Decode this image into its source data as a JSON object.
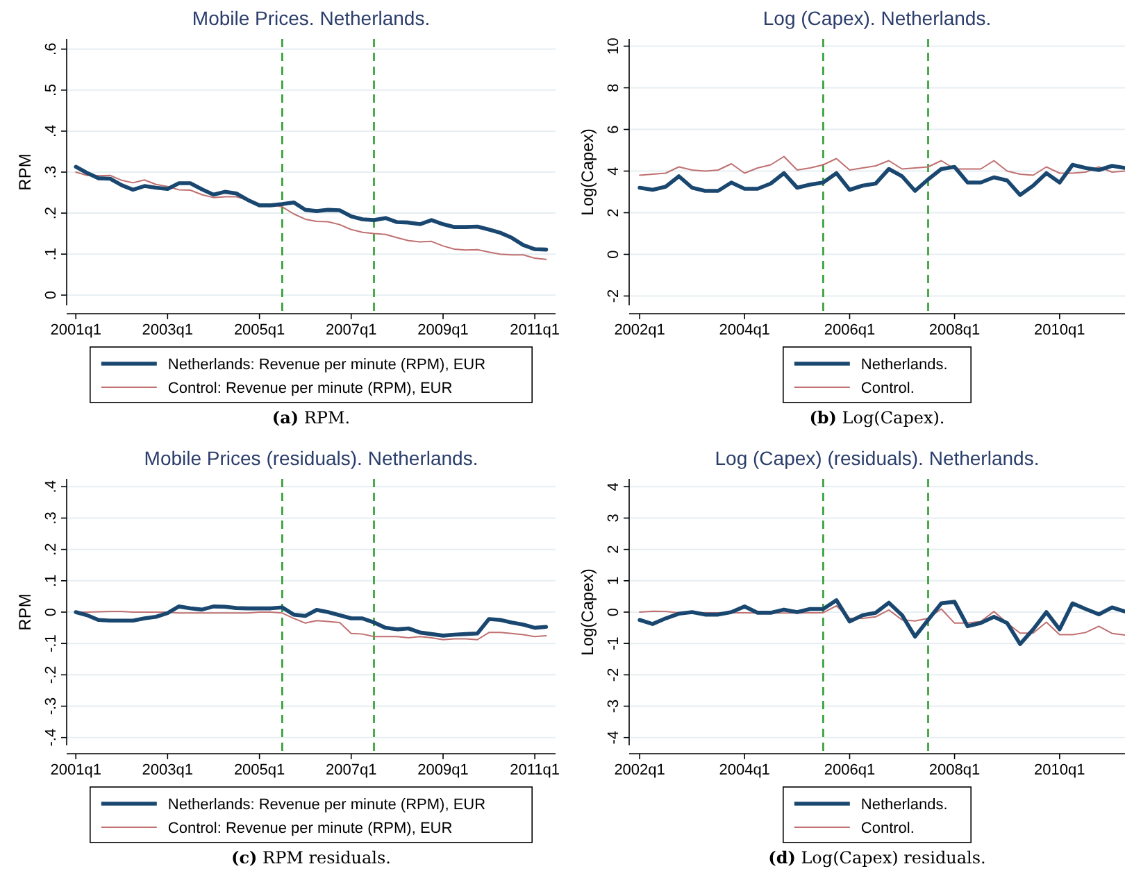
{
  "chart_data": [
    {
      "type": "line",
      "title": "Mobile Prices. Netherlands.",
      "ylabel": "RPM",
      "x": [
        "2001-01",
        "2001-04",
        "2001-07",
        "2001-10",
        "2002-01",
        "2002-04",
        "2002-07",
        "2002-10",
        "2003-01",
        "2003-04",
        "2003-07",
        "2003-10",
        "2004-01",
        "2004-04",
        "2004-07",
        "2004-10",
        "2005-01",
        "2005-04",
        "2005-07",
        "2005-10",
        "2006-01",
        "2006-04",
        "2006-07",
        "2006-10",
        "2007-01",
        "2007-04",
        "2007-07",
        "2007-10",
        "2008-01",
        "2008-04",
        "2008-07",
        "2008-10",
        "2009-01",
        "2009-04",
        "2009-07",
        "2009-10",
        "2010-01",
        "2010-04",
        "2010-07",
        "2010-10",
        "2011-01",
        "2011-04"
      ],
      "xlim": [
        "2000-10-20",
        "2011-06-15"
      ],
      "xticks": [
        {
          "value": "2001-01",
          "label": "2001q1"
        },
        {
          "value": "2003-01",
          "label": "2003q1"
        },
        {
          "value": "2005-01",
          "label": "2005q1"
        },
        {
          "value": "2007-01",
          "label": "2007q1"
        },
        {
          "value": "2009-01",
          "label": "2009q1"
        },
        {
          "value": "2011-01",
          "label": "2011q1"
        }
      ],
      "ylim": [
        -0.025,
        0.625
      ],
      "yticks": [
        0,
        {
          "value": 0.1,
          "label": ".1"
        },
        {
          "value": 0.2,
          "label": ".2"
        },
        {
          "value": 0.3,
          "label": ".3"
        },
        {
          "value": 0.4,
          "label": ".4"
        },
        {
          "value": 0.5,
          "label": ".5"
        },
        {
          "value": 0.6,
          "label": ".6"
        }
      ],
      "series": [
        {
          "name": "Netherlands: Revenue per minute (RPM), EUR",
          "color": "#1a476f",
          "values": [
            0.313,
            0.298,
            0.285,
            0.284,
            0.268,
            0.257,
            0.266,
            0.262,
            0.259,
            0.273,
            0.273,
            0.258,
            0.245,
            0.252,
            0.248,
            0.232,
            0.219,
            0.219,
            0.222,
            0.226,
            0.208,
            0.205,
            0.208,
            0.207,
            0.192,
            0.185,
            0.183,
            0.188,
            0.178,
            0.177,
            0.173,
            0.183,
            0.173,
            0.166,
            0.166,
            0.167,
            0.16,
            0.152,
            0.14,
            0.122,
            0.112,
            0.111
          ]
        },
        {
          "name": "Control: Revenue per minute (RPM), EUR",
          "color": "#c07070",
          "values": [
            0.3,
            0.292,
            0.291,
            0.292,
            0.28,
            0.274,
            0.281,
            0.27,
            0.265,
            0.257,
            0.256,
            0.245,
            0.238,
            0.24,
            0.24,
            0.232,
            0.222,
            0.222,
            0.215,
            0.198,
            0.185,
            0.18,
            0.179,
            0.172,
            0.16,
            0.153,
            0.15,
            0.148,
            0.14,
            0.133,
            0.13,
            0.131,
            0.12,
            0.112,
            0.11,
            0.111,
            0.105,
            0.1,
            0.098,
            0.098,
            0.09,
            0.087
          ]
        }
      ],
      "ref_lines": [
        {
          "axis": "x",
          "value": "2005-07",
          "color": "#2e9e2e",
          "line_style": "dashed"
        },
        {
          "axis": "x",
          "value": "2007-07",
          "color": "#2e9e2e",
          "line_style": "dashed"
        }
      ],
      "grid": "y",
      "legend": "bottom",
      "annotations": [
        "(a) RPM."
      ]
    },
    {
      "type": "line",
      "title": "Log (Capex). Netherlands.",
      "ylabel": "Log(Capex)",
      "x": [
        "2002-01",
        "2002-04",
        "2002-07",
        "2002-10",
        "2003-01",
        "2003-04",
        "2003-07",
        "2003-10",
        "2004-01",
        "2004-04",
        "2004-07",
        "2004-10",
        "2005-01",
        "2005-04",
        "2005-07",
        "2005-10",
        "2006-01",
        "2006-04",
        "2006-07",
        "2006-10",
        "2007-01",
        "2007-04",
        "2007-07",
        "2007-10",
        "2008-01",
        "2008-04",
        "2008-07",
        "2008-10",
        "2009-01",
        "2009-04",
        "2009-07",
        "2009-10",
        "2010-01",
        "2010-04",
        "2010-07",
        "2010-10",
        "2011-01",
        "2011-04"
      ],
      "xlim": [
        "2001-10-20",
        "2011-04-01"
      ],
      "xticks": [
        {
          "value": "2002-01",
          "label": "2002q1"
        },
        {
          "value": "2004-01",
          "label": "2004q1"
        },
        {
          "value": "2006-01",
          "label": "2006q1"
        },
        {
          "value": "2008-01",
          "label": "2008q1"
        },
        {
          "value": "2010-01",
          "label": "2010q1"
        }
      ],
      "ylim": [
        -2.45,
        10.35
      ],
      "yticks": [
        -2,
        0,
        2,
        4,
        6,
        8,
        10
      ],
      "series": [
        {
          "name": "Netherlands.",
          "color": "#1a476f",
          "values": [
            3.2,
            3.1,
            3.25,
            3.75,
            3.2,
            3.05,
            3.05,
            3.45,
            3.15,
            3.15,
            3.4,
            3.9,
            3.2,
            3.35,
            3.45,
            3.9,
            3.1,
            3.3,
            3.4,
            4.1,
            3.75,
            3.05,
            3.6,
            4.1,
            4.2,
            3.45,
            3.45,
            3.7,
            3.55,
            2.85,
            3.3,
            3.9,
            3.45,
            4.3,
            4.15,
            4.05,
            4.25,
            4.15
          ]
        },
        {
          "name": "Control.",
          "color": "#c07070",
          "values": [
            3.8,
            3.85,
            3.9,
            4.2,
            4.05,
            4.0,
            4.05,
            4.35,
            3.9,
            4.15,
            4.3,
            4.7,
            4.05,
            4.15,
            4.3,
            4.6,
            4.05,
            4.15,
            4.25,
            4.5,
            4.1,
            4.15,
            4.2,
            4.5,
            4.1,
            4.1,
            4.1,
            4.5,
            4.0,
            3.85,
            3.8,
            4.2,
            3.9,
            3.9,
            3.95,
            4.2,
            3.95,
            4.0
          ]
        }
      ],
      "ref_lines": [
        {
          "axis": "x",
          "value": "2005-07",
          "color": "#2e9e2e",
          "line_style": "dashed"
        },
        {
          "axis": "x",
          "value": "2007-07",
          "color": "#2e9e2e",
          "line_style": "dashed"
        }
      ],
      "grid": "y",
      "legend": "bottom",
      "annotations": [
        "(b) Log(Capex)."
      ]
    },
    {
      "type": "line",
      "title": "Mobile Prices (residuals). Netherlands.",
      "ylabel": "RPM",
      "x": [
        "2001-01",
        "2001-04",
        "2001-07",
        "2001-10",
        "2002-01",
        "2002-04",
        "2002-07",
        "2002-10",
        "2003-01",
        "2003-04",
        "2003-07",
        "2003-10",
        "2004-01",
        "2004-04",
        "2004-07",
        "2004-10",
        "2005-01",
        "2005-04",
        "2005-07",
        "2005-10",
        "2006-01",
        "2006-04",
        "2006-07",
        "2006-10",
        "2007-01",
        "2007-04",
        "2007-07",
        "2007-10",
        "2008-01",
        "2008-04",
        "2008-07",
        "2008-10",
        "2009-01",
        "2009-04",
        "2009-07",
        "2009-10",
        "2010-01",
        "2010-04",
        "2010-07",
        "2010-10",
        "2011-01",
        "2011-04"
      ],
      "xlim": [
        "2000-10-20",
        "2011-06-15"
      ],
      "xticks": [
        {
          "value": "2001-01",
          "label": "2001q1"
        },
        {
          "value": "2003-01",
          "label": "2003q1"
        },
        {
          "value": "2005-01",
          "label": "2005q1"
        },
        {
          "value": "2007-01",
          "label": "2007q1"
        },
        {
          "value": "2009-01",
          "label": "2009q1"
        },
        {
          "value": "2011-01",
          "label": "2011q1"
        }
      ],
      "ylim": [
        -0.425,
        0.425
      ],
      "yticks": [
        {
          "value": -0.4,
          "label": "-.4"
        },
        {
          "value": -0.3,
          "label": "-.3"
        },
        {
          "value": -0.2,
          "label": "-.2"
        },
        {
          "value": -0.1,
          "label": "-.1"
        },
        0,
        {
          "value": 0.1,
          "label": ".1"
        },
        {
          "value": 0.2,
          "label": ".2"
        },
        {
          "value": 0.3,
          "label": ".3"
        },
        {
          "value": 0.4,
          "label": ".4"
        }
      ],
      "series": [
        {
          "name": "Netherlands: Revenue per minute (RPM), EUR",
          "color": "#1a476f",
          "values": [
            0,
            -0.01,
            -0.025,
            -0.027,
            -0.027,
            -0.027,
            -0.02,
            -0.015,
            -0.003,
            0.018,
            0.012,
            0.008,
            0.018,
            0.017,
            0.013,
            0.012,
            0.012,
            0.012,
            0.015,
            -0.008,
            -0.012,
            0.007,
            0,
            -0.01,
            -0.02,
            -0.02,
            -0.033,
            -0.05,
            -0.055,
            -0.052,
            -0.065,
            -0.07,
            -0.075,
            -0.072,
            -0.07,
            -0.068,
            -0.022,
            -0.025,
            -0.033,
            -0.04,
            -0.05,
            -0.047
          ]
        },
        {
          "name": "Control: Revenue per minute (RPM), EUR",
          "color": "#c07070",
          "values": [
            0,
            0,
            0.001,
            0.002,
            0.002,
            0,
            0,
            0,
            0,
            -0.003,
            -0.003,
            -0.003,
            -0.003,
            -0.003,
            -0.003,
            -0.003,
            0,
            0,
            -0.003,
            -0.02,
            -0.035,
            -0.027,
            -0.03,
            -0.033,
            -0.068,
            -0.07,
            -0.078,
            -0.078,
            -0.078,
            -0.082,
            -0.078,
            -0.082,
            -0.088,
            -0.085,
            -0.085,
            -0.088,
            -0.065,
            -0.065,
            -0.068,
            -0.072,
            -0.078,
            -0.075
          ]
        }
      ],
      "ref_lines": [
        {
          "axis": "x",
          "value": "2005-07",
          "color": "#2e9e2e",
          "line_style": "dashed"
        },
        {
          "axis": "x",
          "value": "2007-07",
          "color": "#2e9e2e",
          "line_style": "dashed"
        }
      ],
      "grid": "y",
      "legend": "bottom",
      "annotations": [
        "(c) RPM residuals."
      ]
    },
    {
      "type": "line",
      "title": "Log (Capex) (residuals). Netherlands.",
      "ylabel": "Log(Capex)",
      "x": [
        "2002-01",
        "2002-04",
        "2002-07",
        "2002-10",
        "2003-01",
        "2003-04",
        "2003-07",
        "2003-10",
        "2004-01",
        "2004-04",
        "2004-07",
        "2004-10",
        "2005-01",
        "2005-04",
        "2005-07",
        "2005-10",
        "2006-01",
        "2006-04",
        "2006-07",
        "2006-10",
        "2007-01",
        "2007-04",
        "2007-07",
        "2007-10",
        "2008-01",
        "2008-04",
        "2008-07",
        "2008-10",
        "2009-01",
        "2009-04",
        "2009-07",
        "2009-10",
        "2010-01",
        "2010-04",
        "2010-07",
        "2010-10",
        "2011-01",
        "2011-04"
      ],
      "xlim": [
        "2001-10-20",
        "2011-04-01"
      ],
      "xticks": [
        {
          "value": "2002-01",
          "label": "2002q1"
        },
        {
          "value": "2004-01",
          "label": "2004q1"
        },
        {
          "value": "2006-01",
          "label": "2006q1"
        },
        {
          "value": "2008-01",
          "label": "2008q1"
        },
        {
          "value": "2010-01",
          "label": "2010q1"
        }
      ],
      "ylim": [
        -4.25,
        4.25
      ],
      "yticks": [
        -4,
        -3,
        -2,
        -1,
        0,
        1,
        2,
        3,
        4
      ],
      "series": [
        {
          "name": "Netherlands.",
          "color": "#1a476f",
          "values": [
            -0.25,
            -0.38,
            -0.2,
            -0.05,
            0,
            -0.08,
            -0.08,
            0,
            0.18,
            -0.02,
            -0.02,
            0.08,
            0,
            0.1,
            0.1,
            0.38,
            -0.3,
            -0.1,
            -0.02,
            0.3,
            -0.1,
            -0.78,
            -0.25,
            0.28,
            0.33,
            -0.45,
            -0.35,
            -0.15,
            -0.35,
            -1.02,
            -0.55,
            0,
            -0.55,
            0.28,
            0.1,
            -0.07,
            0.15,
            0.02
          ]
        },
        {
          "name": "Control.",
          "color": "#c07070",
          "values": [
            0,
            0.03,
            0.02,
            -0.02,
            -0.02,
            -0.02,
            -0.02,
            -0.02,
            -0.02,
            -0.03,
            -0.03,
            -0.03,
            -0.03,
            -0.02,
            -0.02,
            0.2,
            -0.2,
            -0.2,
            -0.15,
            0.07,
            -0.25,
            -0.28,
            -0.2,
            0.1,
            -0.35,
            -0.35,
            -0.3,
            0.02,
            -0.35,
            -0.67,
            -0.67,
            -0.32,
            -0.72,
            -0.72,
            -0.65,
            -0.45,
            -0.68,
            -0.73
          ]
        }
      ],
      "ref_lines": [
        {
          "axis": "x",
          "value": "2005-07",
          "color": "#2e9e2e",
          "line_style": "dashed"
        },
        {
          "axis": "x",
          "value": "2007-07",
          "color": "#2e9e2e",
          "line_style": "dashed"
        }
      ],
      "grid": "y",
      "legend": "bottom",
      "annotations": [
        "(d) Log(Capex) residuals."
      ]
    }
  ]
}
